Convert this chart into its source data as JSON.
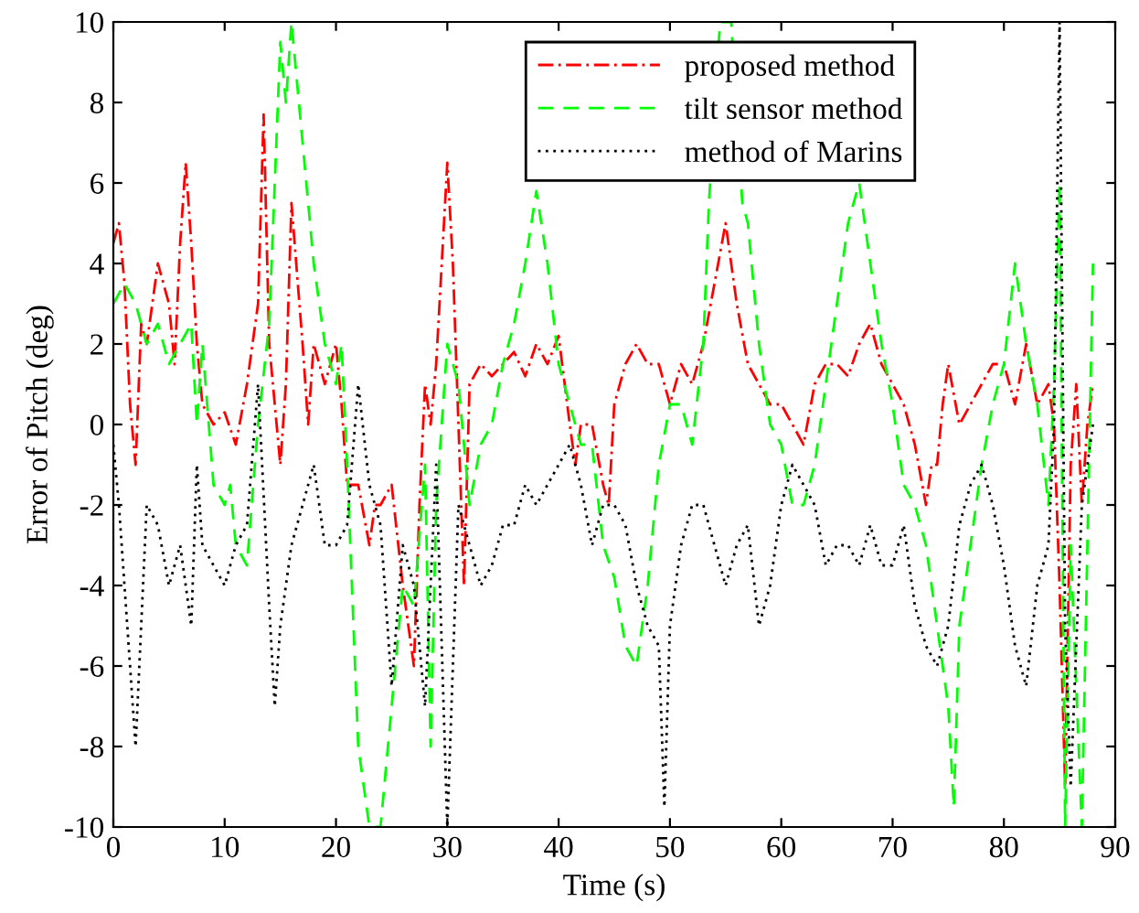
{
  "chart_data": {
    "type": "line",
    "xlabel": "Time (s)",
    "ylabel": "Error of Pitch (deg)",
    "xlim": [
      0,
      90
    ],
    "xticks": [
      0,
      10,
      20,
      30,
      40,
      50,
      60,
      70,
      80,
      90
    ],
    "ylim": [
      -10,
      10
    ],
    "yticks": [
      -10,
      -8,
      -6,
      -4,
      -2,
      0,
      2,
      4,
      6,
      8,
      10
    ],
    "grid": false,
    "legend": "top right",
    "marker": "none",
    "series": [
      {
        "name": "proposed method",
        "color": "#ff0000",
        "line_style": "dashdot",
        "x": [
          0,
          0.5,
          1,
          1.5,
          2,
          2.5,
          3,
          4,
          4.5,
          5,
          5.5,
          6,
          6.5,
          7,
          7.5,
          8,
          9,
          10,
          11,
          12,
          13,
          13.5,
          14,
          15,
          15.5,
          16,
          17,
          17.5,
          18,
          19,
          20,
          20.5,
          21,
          22,
          23,
          23.5,
          24,
          25,
          26,
          27,
          27.5,
          28,
          28.5,
          29,
          30,
          30.5,
          31,
          31.5,
          32,
          33,
          34,
          35,
          36,
          37,
          38,
          39,
          40,
          41,
          41.5,
          42,
          43,
          44,
          44.5,
          45,
          46,
          47,
          48,
          49,
          50,
          51,
          52,
          53,
          54,
          55,
          56,
          57,
          58,
          59,
          60,
          61,
          62,
          63,
          64,
          65,
          66,
          67,
          68,
          69,
          70,
          71,
          72,
          73,
          73.5,
          74,
          74.5,
          75,
          76,
          77,
          78,
          79,
          80,
          81,
          82,
          83,
          84,
          84.5,
          85,
          85.5,
          86,
          86.5,
          87,
          87.5,
          88
        ],
        "values": [
          4.5,
          5,
          3.5,
          0.5,
          -1,
          2.5,
          2,
          4,
          3.5,
          3,
          1.5,
          4.5,
          6.5,
          4.5,
          2,
          0.5,
          0,
          0.3,
          -0.5,
          1,
          3,
          7.7,
          2,
          -1,
          1,
          5.5,
          2,
          0,
          2,
          1,
          2,
          0.5,
          -1.5,
          -1.5,
          -3,
          -2,
          -2,
          -1.5,
          -4,
          -6,
          -2,
          1,
          0,
          1.5,
          6.5,
          4,
          0,
          -4,
          1,
          1.5,
          1.2,
          1.5,
          1.8,
          1.2,
          2,
          1.5,
          2.2,
          0,
          -1,
          0,
          0,
          -1.5,
          -2,
          0.5,
          1.5,
          2,
          1.5,
          1.5,
          0.5,
          1.5,
          1,
          2,
          3.5,
          5,
          3,
          1.5,
          1,
          0.5,
          0.5,
          0,
          -0.5,
          1,
          1.5,
          1.5,
          1.2,
          2,
          2.5,
          1.5,
          1,
          0.5,
          -0.5,
          -2,
          -1,
          -1,
          0.5,
          1.5,
          0,
          0.5,
          1,
          1.5,
          1.5,
          0.5,
          2,
          0.5,
          1,
          0,
          -4,
          -9,
          -1,
          1,
          -2,
          0,
          1
        ]
      },
      {
        "name": "tilt sensor method",
        "color": "#00ff00",
        "line_style": "dashed",
        "x": [
          0,
          1,
          2,
          3,
          4,
          5,
          6,
          7,
          7.5,
          8,
          9,
          10,
          10.5,
          11,
          12,
          13,
          14,
          15,
          15.5,
          16,
          17,
          18,
          18.5,
          19,
          20,
          20.5,
          21,
          22,
          23,
          23.5,
          24,
          25,
          26,
          27,
          28,
          28.5,
          29,
          30,
          31,
          32,
          33,
          34,
          35,
          36,
          37,
          38,
          39,
          40,
          41,
          42,
          43,
          44,
          45,
          46,
          47,
          48,
          49,
          50,
          51,
          52,
          53,
          53.5,
          54.5,
          55.5,
          56.5,
          57,
          58,
          59,
          60,
          61,
          62,
          63,
          64,
          65,
          66,
          67,
          68,
          69,
          70,
          71,
          72,
          73,
          74,
          75,
          75.5,
          76,
          77,
          78,
          79,
          80,
          81,
          82,
          83,
          84,
          84.5,
          85,
          85.5,
          86,
          87,
          88
        ],
        "values": [
          3,
          3.5,
          3,
          2,
          2.5,
          1.5,
          2,
          2.5,
          0,
          2,
          -1.5,
          -2,
          -1.5,
          -3,
          -3.5,
          0,
          2.5,
          9.5,
          8,
          10,
          7,
          4,
          3,
          2,
          1,
          2,
          -1,
          -8,
          -10,
          -10,
          -10,
          -7,
          -4,
          -4.5,
          -1,
          -8,
          -2,
          2,
          1,
          -2,
          -0.5,
          0,
          1.5,
          2.5,
          4,
          5.8,
          4,
          1.5,
          0.5,
          -0.5,
          -0.5,
          -3,
          -3.8,
          -5.5,
          -6,
          -4,
          -1,
          0.5,
          0.5,
          -0.5,
          2,
          5.5,
          10,
          10,
          5.5,
          5,
          2,
          0,
          -0.5,
          -2,
          -2,
          -1,
          1,
          3,
          5,
          6,
          4,
          2,
          0.5,
          -1.5,
          -2,
          -3,
          -5,
          -7,
          -9.5,
          -5,
          -3,
          -1,
          0.5,
          1.5,
          4,
          2,
          0.5,
          -2,
          1,
          6,
          -10,
          -3,
          -10,
          4
        ]
      },
      {
        "name": "method of Marins",
        "color": "#000000",
        "line_style": "dotted",
        "x": [
          0,
          0.5,
          1,
          2,
          3,
          4,
          5,
          6,
          7,
          7.5,
          8,
          9,
          10,
          11,
          12,
          13,
          14,
          14.5,
          15,
          16,
          17,
          18,
          19,
          20,
          21,
          22,
          23,
          24,
          25,
          26,
          27,
          28,
          29,
          30,
          31,
          32,
          33,
          34,
          35,
          36,
          37,
          38,
          39,
          40,
          41,
          42,
          43,
          44,
          45,
          46,
          47,
          48,
          49,
          49.5,
          50,
          51,
          52,
          53,
          54,
          55,
          56,
          57,
          58,
          59,
          60,
          61,
          62,
          63,
          64,
          65,
          66,
          67,
          68,
          69,
          70,
          71,
          72,
          73,
          74,
          75,
          76,
          77,
          78,
          79,
          80,
          81,
          82,
          83,
          84,
          84.5,
          85,
          85.5,
          86,
          87,
          88
        ],
        "values": [
          -0.5,
          -2,
          -4,
          -8,
          -2,
          -2.5,
          -4,
          -3,
          -5,
          -1,
          -3,
          -3.5,
          -4,
          -3,
          -2.5,
          1,
          -4.5,
          -7,
          -5,
          -3,
          -2,
          -1,
          -3,
          -3,
          -2.5,
          1,
          -1.5,
          -2.5,
          -6.5,
          -3,
          -4,
          -7,
          -1,
          -10,
          -2,
          -3,
          -4,
          -3.5,
          -2.5,
          -2.5,
          -1.5,
          -2,
          -1.5,
          -1,
          -0.5,
          -1.5,
          -3,
          -2,
          -2,
          -2.5,
          -4,
          -5,
          -5.5,
          -9.5,
          -5,
          -3,
          -2,
          -2,
          -3,
          -4,
          -3,
          -2.5,
          -5,
          -4,
          -2,
          -1,
          -1.5,
          -2,
          -3.5,
          -3,
          -3,
          -3.5,
          -2.5,
          -3.5,
          -3.5,
          -2.5,
          -4.5,
          -5.5,
          -6,
          -5,
          -2.5,
          -1.5,
          -1,
          -2,
          -3.5,
          -5.5,
          -6.5,
          -4,
          -3,
          0,
          10,
          -5,
          -9,
          -2,
          0
        ]
      }
    ]
  }
}
